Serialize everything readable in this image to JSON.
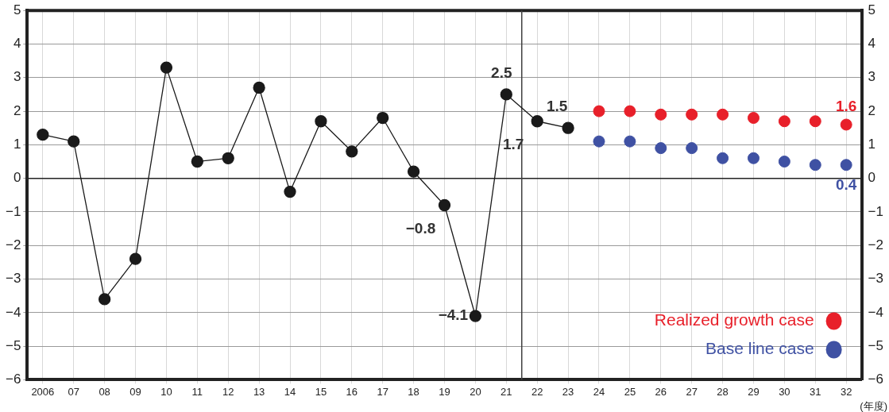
{
  "chart_data": {
    "type": "line",
    "xlabel": "(年度)",
    "xlim": [
      2005.5,
      2032.5
    ],
    "xticks": [
      {
        "value": 2006,
        "label": "2006"
      },
      {
        "value": 2007,
        "label": "07"
      },
      {
        "value": 2008,
        "label": "08"
      },
      {
        "value": 2009,
        "label": "09"
      },
      {
        "value": 2010,
        "label": "10"
      },
      {
        "value": 2011,
        "label": "11"
      },
      {
        "value": 2012,
        "label": "12"
      },
      {
        "value": 2013,
        "label": "13"
      },
      {
        "value": 2014,
        "label": "14"
      },
      {
        "value": 2015,
        "label": "15"
      },
      {
        "value": 2016,
        "label": "16"
      },
      {
        "value": 2017,
        "label": "17"
      },
      {
        "value": 2018,
        "label": "18"
      },
      {
        "value": 2019,
        "label": "19"
      },
      {
        "value": 2020,
        "label": "20"
      },
      {
        "value": 2021,
        "label": "21"
      },
      {
        "value": 2022,
        "label": "22"
      },
      {
        "value": 2023,
        "label": "23"
      },
      {
        "value": 2024,
        "label": "24"
      },
      {
        "value": 2025,
        "label": "25"
      },
      {
        "value": 2026,
        "label": "26"
      },
      {
        "value": 2027,
        "label": "27"
      },
      {
        "value": 2028,
        "label": "28"
      },
      {
        "value": 2029,
        "label": "29"
      },
      {
        "value": 2030,
        "label": "30"
      },
      {
        "value": 2031,
        "label": "31"
      },
      {
        "value": 2032,
        "label": "32"
      }
    ],
    "ylim": [
      -6,
      5
    ],
    "yticks": [
      -6,
      -5,
      -4,
      -3,
      -2,
      -1,
      0,
      1,
      2,
      3,
      4,
      5
    ],
    "y2lim": [
      -6,
      5
    ],
    "y2ticks": [
      -6,
      -5,
      -4,
      -3,
      -2,
      -1,
      0,
      1,
      2,
      3,
      4,
      5
    ],
    "grid": true,
    "legend": "bottom right",
    "marker": "circle",
    "line_style": "solid",
    "ref_lines": [
      {
        "axis": "x",
        "value": 2021.5,
        "color": "#404040",
        "line_style": "solid"
      }
    ],
    "series": [
      {
        "type": "line",
        "color": "#1a1a1a",
        "x": [
          2006,
          2007,
          2008,
          2009,
          2010,
          2011,
          2012,
          2013,
          2014,
          2015,
          2016,
          2017,
          2018,
          2019,
          2020,
          2021,
          2022,
          2023
        ],
        "values": [
          1.3,
          1.1,
          -3.6,
          -2.4,
          3.3,
          0.5,
          0.6,
          2.7,
          -0.4,
          1.7,
          0.8,
          1.8,
          0.2,
          -0.8,
          -4.1,
          2.5,
          1.7,
          1.5
        ],
        "value_labels": [
          null,
          null,
          null,
          null,
          null,
          null,
          null,
          null,
          null,
          null,
          null,
          null,
          null,
          "−0.8",
          "−4.1",
          "2.5",
          "1.7",
          "1.5"
        ]
      },
      {
        "type": "scatter",
        "name": "Realized growth case",
        "color": "#e8202a",
        "x": [
          2024,
          2025,
          2026,
          2027,
          2028,
          2029,
          2030,
          2031,
          2032
        ],
        "values": [
          2.0,
          2.0,
          1.9,
          1.9,
          1.9,
          1.8,
          1.7,
          1.7,
          1.6
        ],
        "value_labels": [
          null,
          null,
          null,
          null,
          null,
          null,
          null,
          null,
          "1.6"
        ]
      },
      {
        "type": "scatter",
        "name": "Base line case",
        "color": "#3f51a3",
        "x": [
          2024,
          2025,
          2026,
          2027,
          2028,
          2029,
          2030,
          2031,
          2032
        ],
        "values": [
          1.1,
          1.1,
          0.9,
          0.9,
          0.6,
          0.6,
          0.5,
          0.4,
          0.4
        ],
        "value_labels": [
          null,
          null,
          null,
          null,
          null,
          null,
          null,
          null,
          "0.4"
        ]
      }
    ]
  }
}
